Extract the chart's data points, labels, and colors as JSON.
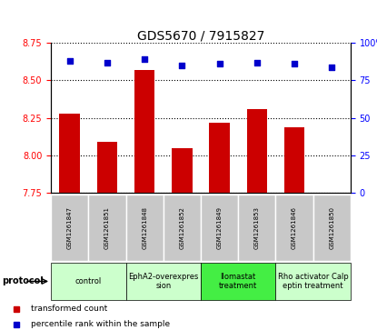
{
  "title": "GDS5670 / 7915827",
  "samples": [
    "GSM1261847",
    "GSM1261851",
    "GSM1261848",
    "GSM1261852",
    "GSM1261849",
    "GSM1261853",
    "GSM1261846",
    "GSM1261850"
  ],
  "bar_values": [
    8.28,
    8.09,
    8.57,
    8.05,
    8.22,
    8.31,
    8.19,
    7.755
  ],
  "scatter_values": [
    88,
    87,
    89,
    85,
    86,
    87,
    86,
    84
  ],
  "ylim_left": [
    7.75,
    8.75
  ],
  "ylim_right": [
    0,
    100
  ],
  "yticks_left": [
    7.75,
    8.0,
    8.25,
    8.5,
    8.75
  ],
  "yticks_right": [
    0,
    25,
    50,
    75,
    100
  ],
  "bar_color": "#cc0000",
  "scatter_color": "#0000cc",
  "protocols": [
    {
      "label": "control",
      "start": 0,
      "end": 2,
      "color": "#ccffcc"
    },
    {
      "label": "EphA2-overexpres\nsion",
      "start": 2,
      "end": 4,
      "color": "#ccffcc"
    },
    {
      "label": "Ilomastat\ntreatment",
      "start": 4,
      "end": 6,
      "color": "#44ee44"
    },
    {
      "label": "Rho activator Calp\neptin treatment",
      "start": 6,
      "end": 8,
      "color": "#ccffcc"
    }
  ],
  "legend_items": [
    {
      "label": "transformed count",
      "color": "#cc0000"
    },
    {
      "label": "percentile rank within the sample",
      "color": "#0000cc"
    }
  ],
  "protocol_label": "protocol",
  "sample_box_color": "#c8c8c8",
  "title_fontsize": 10,
  "tick_fontsize": 7,
  "sample_fontsize": 5,
  "proto_fontsize": 6
}
